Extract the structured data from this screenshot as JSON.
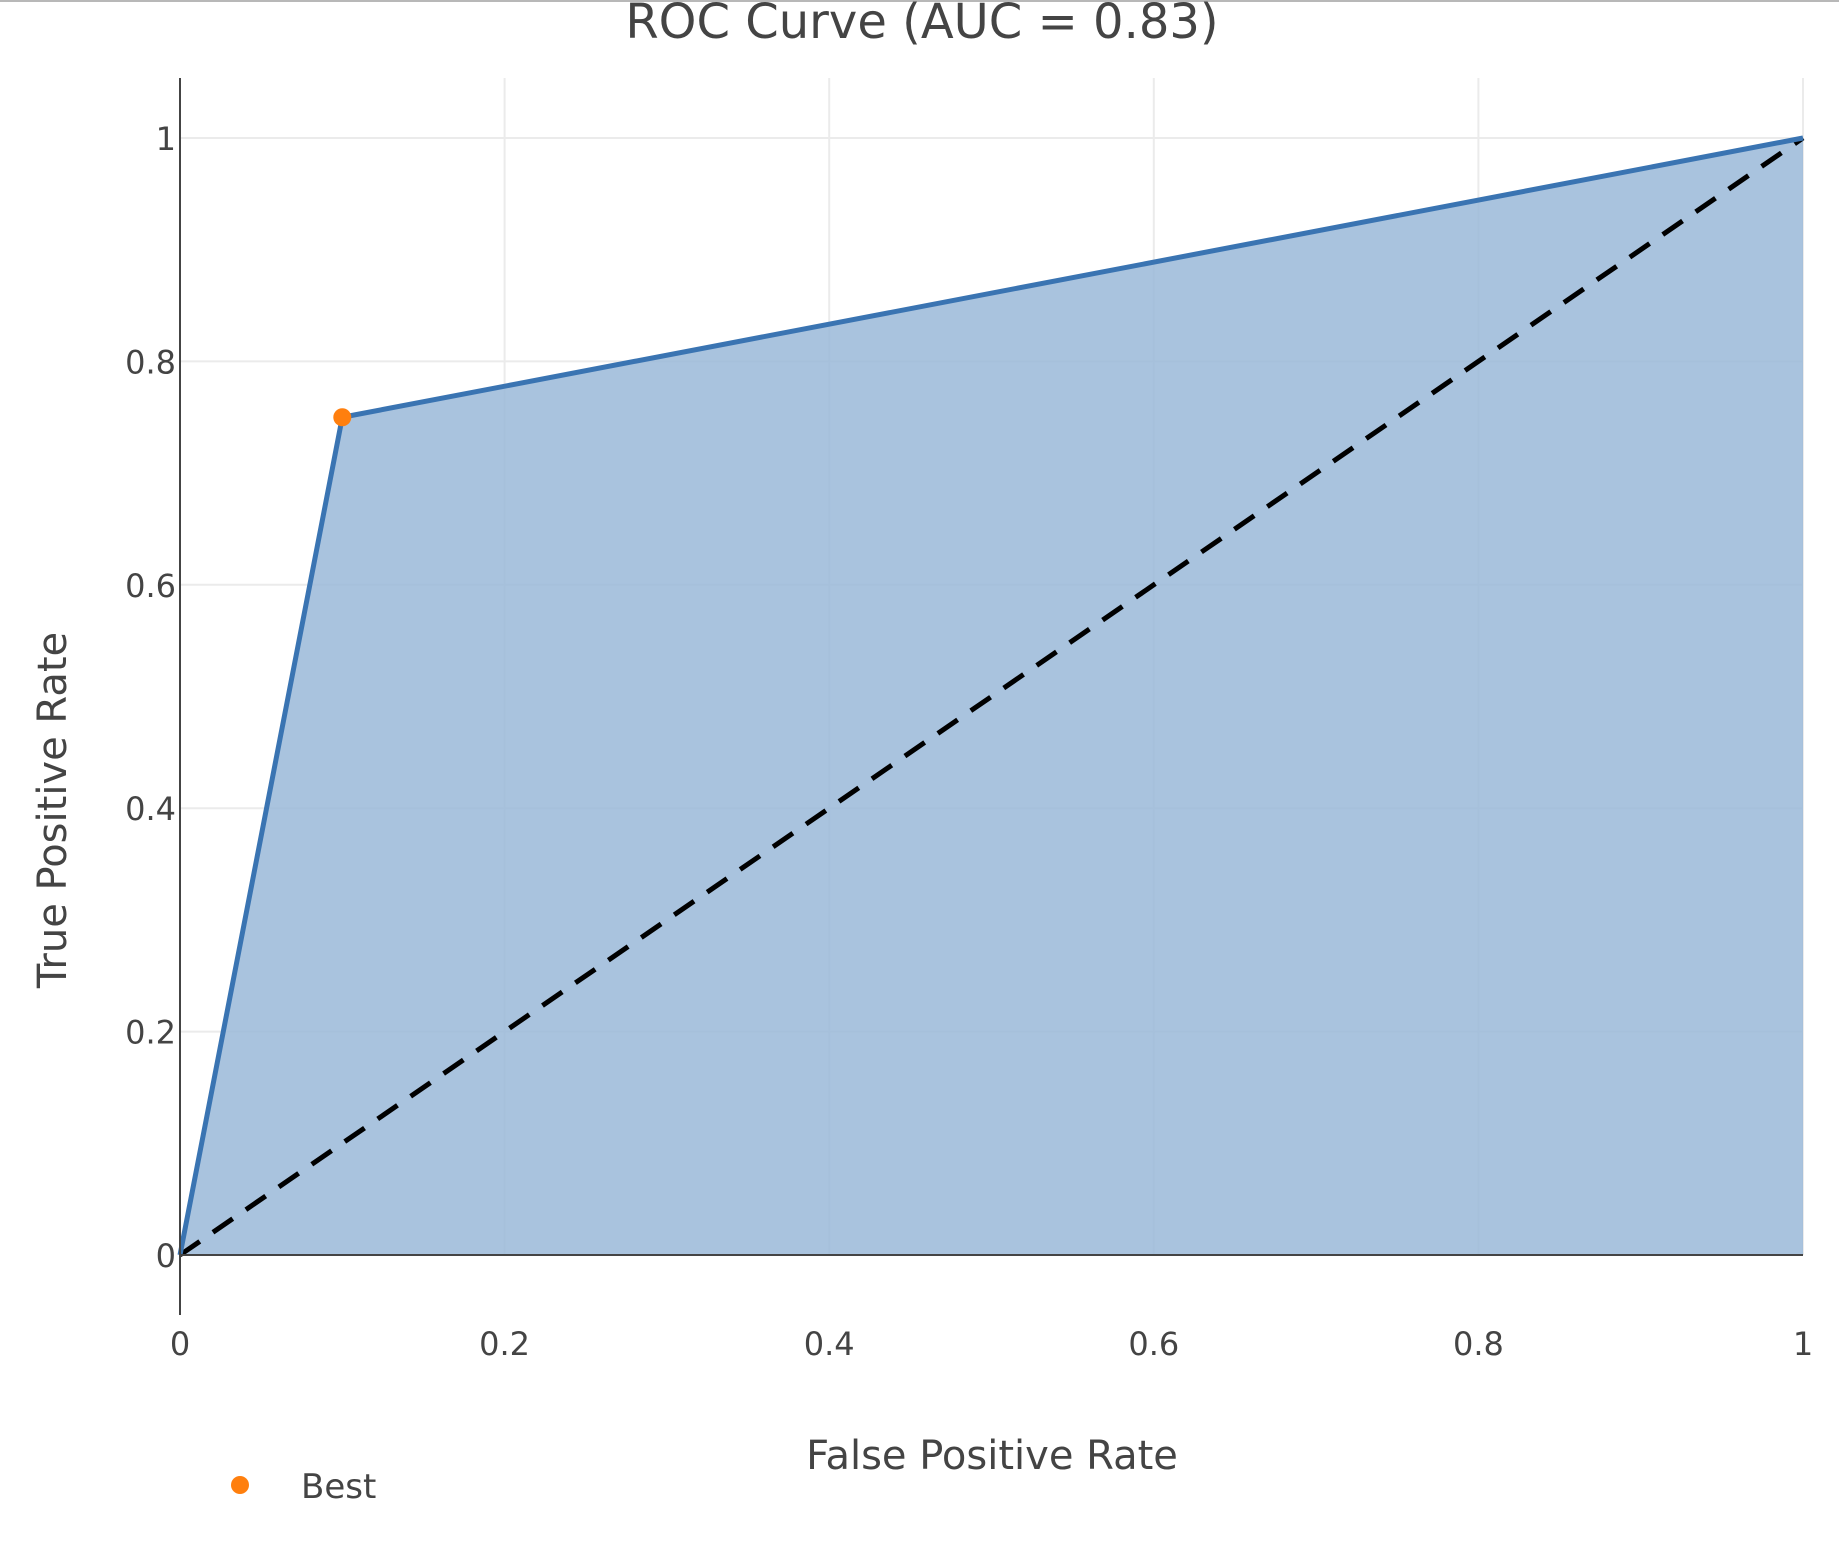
{
  "chart_data": {
    "type": "area",
    "title": "ROC Curve (AUC = 0.83)",
    "xlabel": "False Positive Rate",
    "ylabel": "True Positive Rate",
    "xlim": [
      0,
      1
    ],
    "ylim": [
      0,
      1
    ],
    "x_ticks": [
      {
        "value": 0,
        "label": "0"
      },
      {
        "value": 0.2,
        "label": "0.2"
      },
      {
        "value": 0.4,
        "label": "0.4"
      },
      {
        "value": 0.6,
        "label": "0.6"
      },
      {
        "value": 0.8,
        "label": "0.8"
      },
      {
        "value": 1,
        "label": "1"
      }
    ],
    "y_ticks": [
      {
        "value": 0,
        "label": "0"
      },
      {
        "value": 0.2,
        "label": "0.2"
      },
      {
        "value": 0.4,
        "label": "0.4"
      },
      {
        "value": 0.6,
        "label": "0.6"
      },
      {
        "value": 0.8,
        "label": "0.8"
      },
      {
        "value": 1,
        "label": "1"
      }
    ],
    "grid": true,
    "legend_position": "bottom-left",
    "series": [
      {
        "role": "roc-curve",
        "x": [
          0,
          0.1,
          1
        ],
        "y": [
          0,
          0.75,
          1
        ],
        "line_color": "#3a74b2",
        "fill_color": "#9ab9d8"
      },
      {
        "role": "chance-diagonal",
        "x": [
          0,
          1
        ],
        "y": [
          0,
          1
        ],
        "line_color": "#000000",
        "dash": "dashed"
      },
      {
        "name": "Best",
        "role": "best-point",
        "x": [
          0.1
        ],
        "y": [
          0.75
        ],
        "marker_color": "#ff7f0e"
      }
    ]
  }
}
